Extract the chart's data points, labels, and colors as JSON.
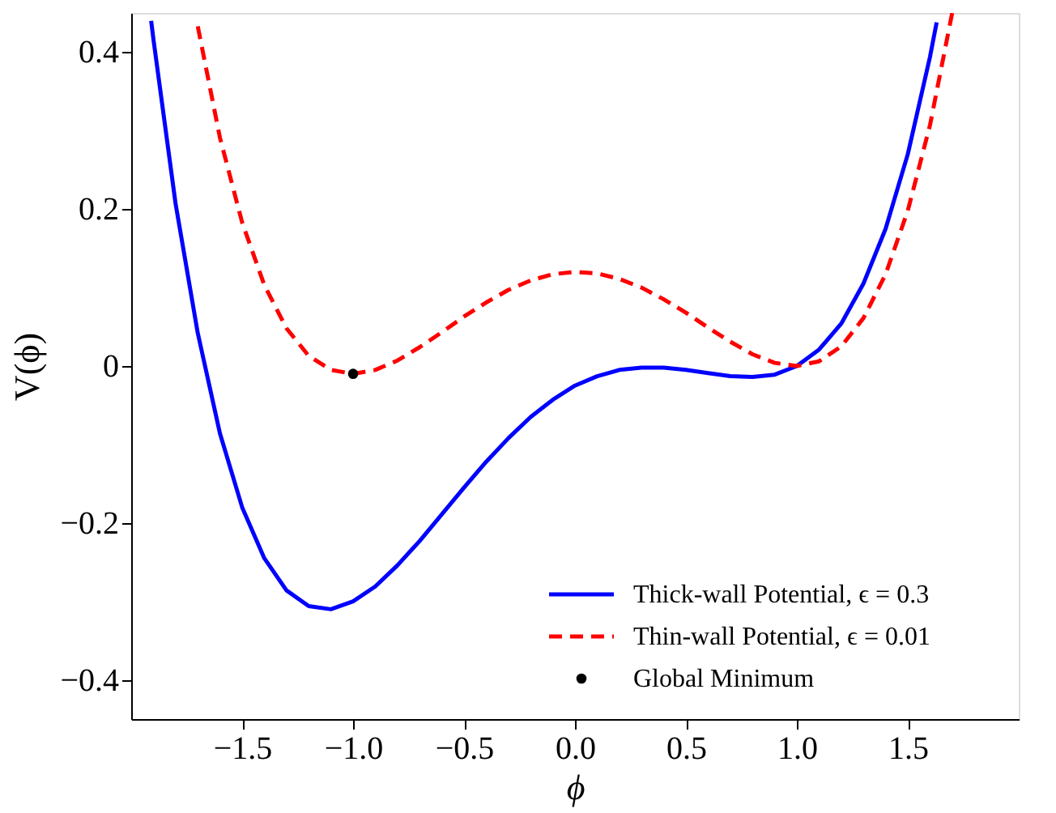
{
  "chart_data": {
    "type": "line",
    "xlabel": "ϕ",
    "ylabel": "V(ϕ)",
    "xlim": [
      -2,
      2
    ],
    "ylim": [
      -0.45,
      0.45
    ],
    "xticks": [
      {
        "value": -1.5,
        "label": "−1.5"
      },
      {
        "value": -1.0,
        "label": "−1.0"
      },
      {
        "value": -0.5,
        "label": "−0.5"
      },
      {
        "value": 0,
        "label": "0.0"
      },
      {
        "value": 0.5,
        "label": "0.5"
      },
      {
        "value": 1.0,
        "label": "1.0"
      },
      {
        "value": 1.5,
        "label": "1.5"
      }
    ],
    "yticks": [
      {
        "value": -0.4,
        "label": "−0.4"
      },
      {
        "value": -0.2,
        "label": "−0.2"
      },
      {
        "value": 0,
        "label": "0"
      },
      {
        "value": 0.2,
        "label": "0.2"
      },
      {
        "value": 0.4,
        "label": "0.4"
      }
    ],
    "grid": false,
    "legend": "bottom right",
    "series": [
      {
        "name": "Thick-wall Potential, ϵ = 0.3",
        "type": "line",
        "line_style": "solid",
        "color": "#0000ff",
        "x": [
          -1.91,
          -1.9,
          -1.8,
          -1.7,
          -1.6,
          -1.5,
          -1.4,
          -1.3,
          -1.2,
          -1.1,
          -1.0,
          -0.9,
          -0.8,
          -0.7,
          -0.6,
          -0.5,
          -0.4,
          -0.3,
          -0.2,
          -0.1,
          0.0,
          0.1,
          0.2,
          0.3,
          0.4,
          0.5,
          0.6,
          0.7,
          0.8,
          0.9,
          1.0,
          1.1,
          1.2,
          1.3,
          1.4,
          1.5,
          1.6,
          1.63
        ],
        "values": [
          0.44,
          0.417,
          0.207,
          0.042,
          -0.086,
          -0.18,
          -0.245,
          -0.286,
          -0.306,
          -0.31,
          -0.3,
          -0.281,
          -0.254,
          -0.223,
          -0.189,
          -0.155,
          -0.122,
          -0.092,
          -0.065,
          -0.043,
          -0.025,
          -0.013,
          -0.005,
          -0.002,
          -0.002,
          -0.005,
          -0.009,
          -0.013,
          -0.014,
          -0.011,
          0.0,
          0.021,
          0.054,
          0.105,
          0.175,
          0.27,
          0.394,
          0.438
        ]
      },
      {
        "name": "Thin-wall Potential, ϵ = 0.01",
        "type": "line",
        "line_style": "dashed",
        "color": "#ff0000",
        "x": [
          -1.7,
          -1.6,
          -1.5,
          -1.4,
          -1.3,
          -1.2,
          -1.1,
          -1.0,
          -0.9,
          -0.8,
          -0.7,
          -0.6,
          -0.5,
          -0.4,
          -0.3,
          -0.2,
          -0.1,
          0.0,
          0.1,
          0.2,
          0.3,
          0.4,
          0.5,
          0.6,
          0.7,
          0.8,
          0.9,
          1.0,
          1.1,
          1.2,
          1.3,
          1.4,
          1.5,
          1.6,
          1.7
        ],
        "values": [
          0.433,
          0.291,
          0.183,
          0.103,
          0.048,
          0.013,
          -0.005,
          -0.01,
          -0.005,
          0.007,
          0.024,
          0.043,
          0.063,
          0.081,
          0.097,
          0.109,
          0.117,
          0.12,
          0.118,
          0.111,
          0.1,
          0.085,
          0.068,
          0.049,
          0.031,
          0.015,
          0.004,
          0.0,
          0.006,
          0.025,
          0.061,
          0.117,
          0.198,
          0.307,
          0.45
        ]
      },
      {
        "name": "Global Minimum",
        "type": "scatter",
        "marker": "circle",
        "color": "#000000",
        "x": [
          -1.0
        ],
        "values": [
          -0.01
        ]
      }
    ]
  }
}
